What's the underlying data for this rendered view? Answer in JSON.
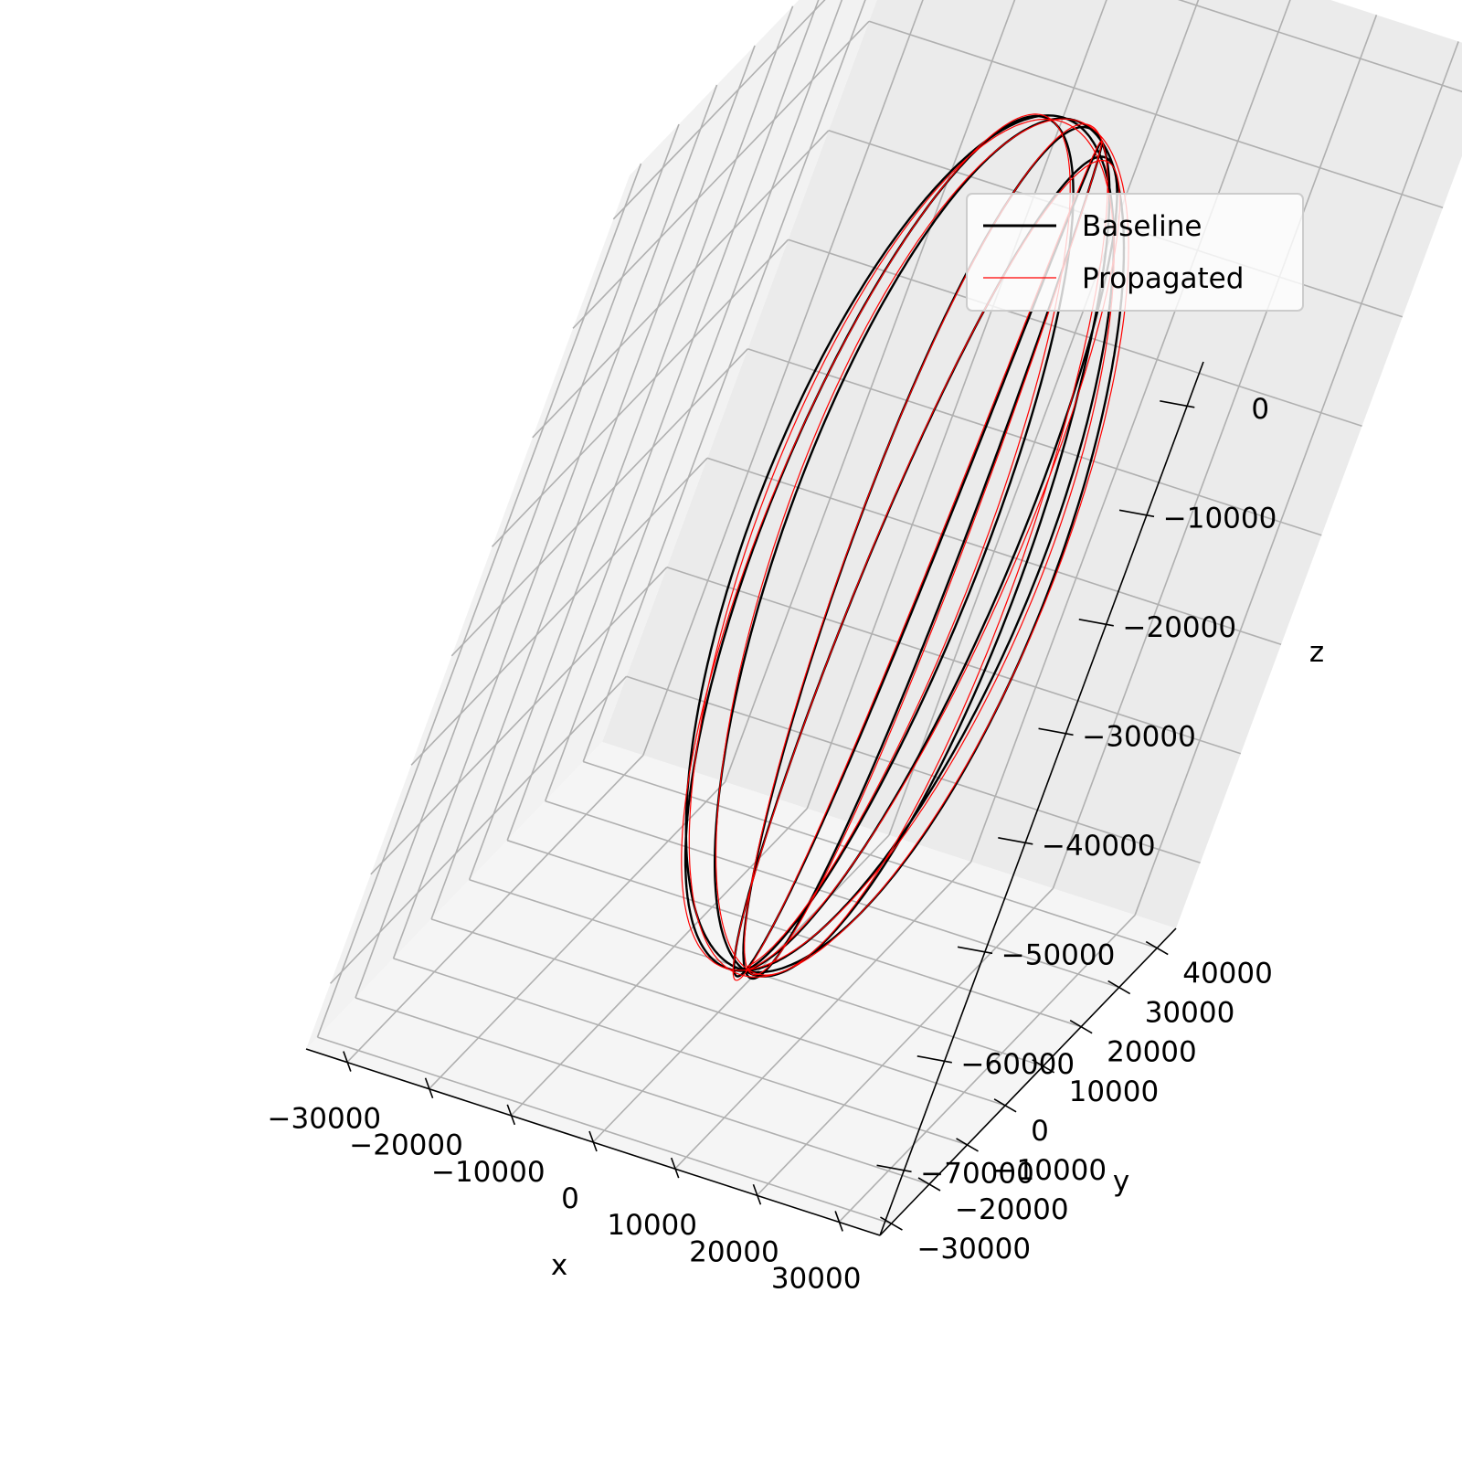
{
  "chart_data": {
    "type": "line",
    "projection": "3d",
    "title": "",
    "xlabel": "x",
    "ylabel": "y",
    "zlabel": "z",
    "xlim": [
      -35000,
      35000
    ],
    "ylim": [
      -33000,
      45000
    ],
    "zlim": [
      -76000,
      4000
    ],
    "x_ticks": [
      -30000,
      -20000,
      -10000,
      0,
      10000,
      20000,
      30000
    ],
    "y_ticks": [
      -30000,
      -20000,
      -10000,
      0,
      10000,
      20000,
      30000,
      40000
    ],
    "z_ticks": [
      0,
      -10000,
      -20000,
      -30000,
      -40000,
      -50000,
      -60000,
      -70000
    ],
    "x_tick_labels": [
      "−30000",
      "−20000",
      "−10000",
      "0",
      "10000",
      "20000",
      "30000"
    ],
    "y_tick_labels": [
      "−30000",
      "−20000",
      "−10000",
      "0",
      "10000",
      "20000",
      "30000",
      "40000"
    ],
    "z_tick_labels": [
      "0",
      "−10000",
      "−20000",
      "−30000",
      "−40000",
      "−50000",
      "−60000",
      "−70000"
    ],
    "grid": true,
    "legend": {
      "position": "top-right"
    },
    "orbit_model": {
      "description": "Repeated elliptical orbits precessing about the z axis; apex near z=2000, lowest point near z=-74000.",
      "orbits": 6,
      "semi_major_axis_extent": 38000,
      "half_width": 17000,
      "center_z": -36000,
      "precession_deg_per_orbit": 32,
      "start_angle_deg": 60,
      "eccentric_offset": 18000
    },
    "series": [
      {
        "name": "Baseline",
        "color": "#000000",
        "linewidth": 2.4,
        "perturbation": 0
      },
      {
        "name": "Propagated",
        "color": "#ff0000",
        "linewidth": 1.2,
        "perturbation": 1
      }
    ]
  },
  "colors": {
    "pane_left": "#f2f2f2",
    "pane_back": "#ebebeb",
    "pane_floor": "#f5f5f5",
    "grid": "#b0b0b0",
    "axis": "#000000",
    "legend_border": "#cccccc"
  }
}
